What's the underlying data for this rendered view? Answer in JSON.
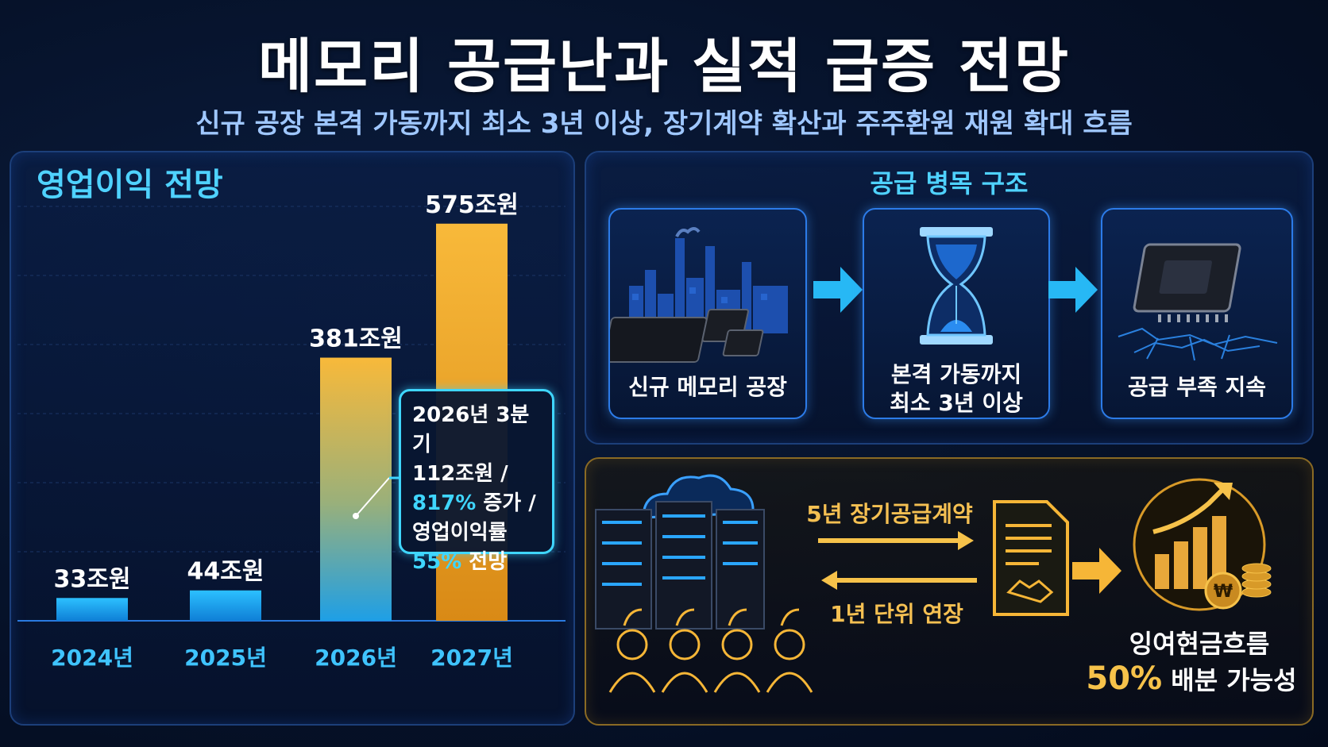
{
  "header": {
    "title": "메모리 공급난과 실적 급증 전망",
    "subtitle": "신규 공장 본격 가동까지 최소 3년 이상, 장기계약 확산과 주주환원 재원 확대 흐름"
  },
  "chart_panel": {
    "title": "영업이익 전망"
  },
  "chart_data": {
    "type": "bar",
    "title": "영업이익 전망",
    "categories": [
      "2024년",
      "2025년",
      "2026년",
      "2027년"
    ],
    "values": [
      33,
      44,
      381,
      575
    ],
    "value_labels": [
      "33조원",
      "44조원",
      "381조원",
      "575조원"
    ],
    "ylim": [
      0,
      600
    ],
    "colors": [
      "#1aa6f0",
      "#1aa6f0",
      "#f5a623",
      "#f39c12"
    ],
    "grid": true,
    "annotation": {
      "category": "2026년",
      "line1": "2026년 3분기",
      "line2": "112조원 /",
      "line3_value": "817%",
      "line3_text": " 증가 /",
      "line4": "영업이익률",
      "line5_value": "55%",
      "line5_text": " 전망"
    }
  },
  "supply_flow": {
    "title": "공급 병목 구조",
    "steps": [
      {
        "label": "신규 메모리 공장",
        "icon": "factory-chip-icon"
      },
      {
        "label_line1": "본격 가동까지",
        "label_line2": "최소 3년 이상",
        "icon": "hourglass-icon"
      },
      {
        "label": "공급 부족 지속",
        "icon": "cracked-chip-icon"
      }
    ]
  },
  "contract_flow": {
    "arrow_right_label": "5년 장기공급계약",
    "arrow_left_label": "1년 단위 연장",
    "icons": [
      "server-cloud-icon",
      "customers-icon",
      "contract-document-icon",
      "growth-coins-icon"
    ],
    "result_line1": "잉여현금흐름",
    "result_value": "50%",
    "result_text": " 배분 가능성"
  }
}
